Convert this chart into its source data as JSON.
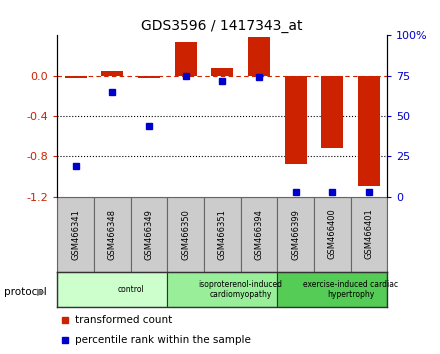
{
  "title": "GDS3596 / 1417343_at",
  "samples": [
    "GSM466341",
    "GSM466348",
    "GSM466349",
    "GSM466350",
    "GSM466351",
    "GSM466394",
    "GSM466399",
    "GSM466400",
    "GSM466401"
  ],
  "transformed_count": [
    -0.02,
    0.05,
    -0.02,
    0.33,
    0.08,
    0.38,
    -0.88,
    -0.72,
    -1.1
  ],
  "percentile_rank": [
    19,
    65,
    44,
    75,
    72,
    74,
    3,
    3,
    3
  ],
  "ylim_left": [
    -1.2,
    0.4
  ],
  "ylim_right": [
    0,
    100
  ],
  "yticks_left": [
    0.0,
    -0.4,
    -0.8,
    -1.2
  ],
  "yticks_right": [
    0,
    25,
    50,
    75,
    100
  ],
  "yticklabels_right": [
    "0",
    "25",
    "50",
    "75",
    "100%"
  ],
  "groups": [
    {
      "label": "control",
      "start": 0,
      "end": 3,
      "color": "#ccffcc"
    },
    {
      "label": "isoproterenol-induced\ncardiomyopathy",
      "start": 3,
      "end": 6,
      "color": "#99ee99"
    },
    {
      "label": "exercise-induced cardiac\nhypertrophy",
      "start": 6,
      "end": 9,
      "color": "#55cc55"
    }
  ],
  "bar_color_red": "#cc2200",
  "bar_color_blue": "#0000cc",
  "dashed_line_color": "#cc2200",
  "dotted_line_color": "#000000",
  "bg_color": "#ffffff",
  "sample_bg_color": "#cccccc",
  "sample_border_color": "#666666",
  "legend_red_label": "transformed count",
  "legend_blue_label": "percentile rank within the sample",
  "protocol_label": "protocol",
  "bar_width": 0.6
}
